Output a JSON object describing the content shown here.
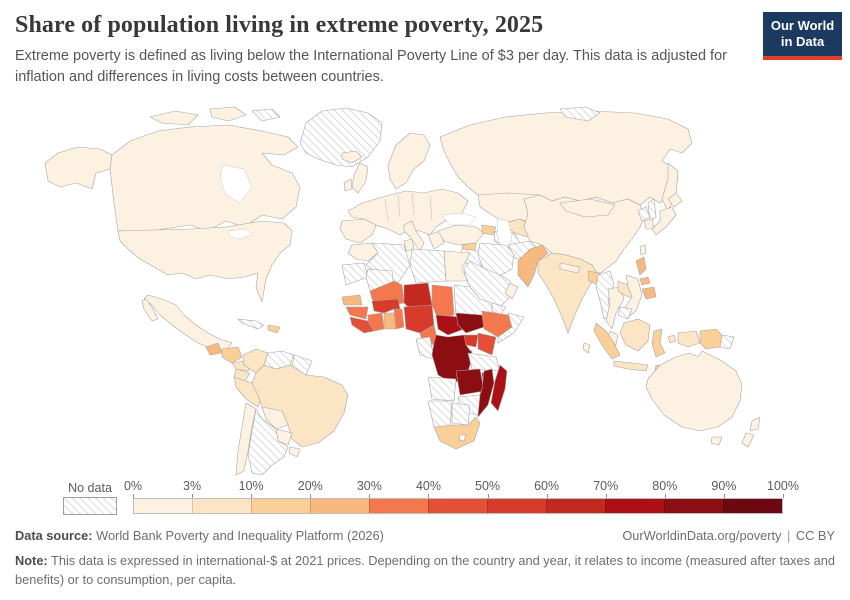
{
  "header": {
    "title": "Share of population living in extreme poverty, 2025",
    "subtitle": "Extreme poverty is defined as living below the International Poverty Line of $3 per day. This data is adjusted for inflation and differences in living costs between countries.",
    "logo_line1": "Our World",
    "logo_line2": "in Data"
  },
  "legend": {
    "no_data_label": "No data",
    "tick_labels": [
      "0%",
      "3%",
      "10%",
      "20%",
      "30%",
      "40%",
      "50%",
      "60%",
      "70%",
      "80%",
      "90%",
      "100%"
    ],
    "colors": [
      "#FDF2E1",
      "#FCE5C4",
      "#FAD098",
      "#F7B97F",
      "#F4784E",
      "#E34F37",
      "#D63B2B",
      "#C22A20",
      "#AC1016",
      "#8C0E12",
      "#6B0810"
    ],
    "accent_navy": "#1c3a60",
    "accent_red": "#e23e2b"
  },
  "footer": {
    "data_source_label": "Data source:",
    "data_source_value": "World Bank Poverty and Inequality Platform (2026)",
    "link_text": "OurWorldinData.org/poverty",
    "divider": "|",
    "license": "CC BY",
    "note_label": "Note:",
    "note_text": "This data is expressed in international-$ at 2021 prices. Depending on the country and year, it relates to income (measured after taxes and benefits) or to consumption, per capita."
  },
  "chart_data": {
    "type": "choropleth-map",
    "title": "Share of population living in extreme poverty, 2025",
    "unit": "% of population",
    "bins": [
      "0-3%",
      "3-10%",
      "10-20%",
      "20-30%",
      "30-40%",
      "40-50%",
      "50-60%",
      "60-70%",
      "70-80%",
      "80-90%",
      "90-100%"
    ],
    "legend_position": "bottom",
    "no_data_style": "diagonal-hatch"
  },
  "map": {
    "countries": {
      "canada": 1,
      "usa": 1,
      "greenland": 0,
      "arctic-isle": 0,
      "mexico": 1,
      "guatemala": 4,
      "honduras-nicaragua": 3,
      "costa-rica-panama": 2,
      "cuba": 0,
      "hispaniola": 3,
      "colombia": 2,
      "venezuela": 0,
      "guianas": 0,
      "ecuador": 2,
      "peru": 2,
      "brazil": 2,
      "bolivia": 1,
      "paraguay": 1,
      "uruguay": 1,
      "chile": 1,
      "argentina": 0,
      "iceland": 1,
      "uk": 1,
      "ireland": 1,
      "scandinavia": 1,
      "europe": 1,
      "iberia": 1,
      "italy": 1,
      "greece": 1,
      "russia": 1,
      "novaya-zemlya": 0,
      "sakhalin": 0,
      "kazakhstan": 1,
      "uzbekistan": 2,
      "turkmenistan": 0,
      "tajikistan": 3,
      "kyrgyzstan": 2,
      "azerbaijan": 3,
      "turkey": 1,
      "syria": 3,
      "iraq": 0,
      "iran": 0,
      "saudi-arabia": 0,
      "yemen": 0,
      "oman": 1,
      "afghanistan": 0,
      "pakistan": 4,
      "india": 2,
      "nepal": 1,
      "bangladesh": 3,
      "sri-lanka": 1,
      "myanmar": 0,
      "thailand": 1,
      "laos": 2,
      "vietnam": 1,
      "cambodia": 0,
      "malaysia": 1,
      "china": 1,
      "mongolia": 1,
      "north-korea": 0,
      "south-korea": 1,
      "japan": 1,
      "taiwan": 1,
      "philippines": 4,
      "sumatra": 3,
      "java": 2,
      "borneo": 2,
      "sulawesi": 3,
      "moluccas": 2,
      "west-papua": 2,
      "papua-new-guinea": 3,
      "solomon-islands": 0,
      "timor": 3,
      "australia": 1,
      "tasmania": 1,
      "new-zealand": 1,
      "morocco": 1,
      "western-sahara": 0,
      "algeria": 0,
      "tunisia": 1,
      "libya": 0,
      "egypt": 1,
      "mauritania": 0,
      "mali": 5,
      "niger": 8,
      "chad": 5,
      "sudan": 0,
      "eritrea": 0,
      "senegal": 4,
      "guinea": 5,
      "sierra-leone-liberia": 6,
      "ivory-coast": 5,
      "ghana": 4,
      "togo-benin": 5,
      "burkina-faso": 7,
      "nigeria": 7,
      "cameroon": 5,
      "central-african-republic": 9,
      "south-sudan": 10,
      "ethiopia": 5,
      "somalia": 0,
      "uganda": 7,
      "kenya": 6,
      "rwanda-burundi": 9,
      "drc": 10,
      "gabon-congo": 0,
      "tanzania": 0,
      "angola": 0,
      "zambia": 10,
      "malawi": 10,
      "mozambique": 10,
      "zimbabwe": 0,
      "namibia": 0,
      "botswana": 0,
      "south-africa": 3,
      "lesotho": 0,
      "madagascar": 9
    }
  }
}
